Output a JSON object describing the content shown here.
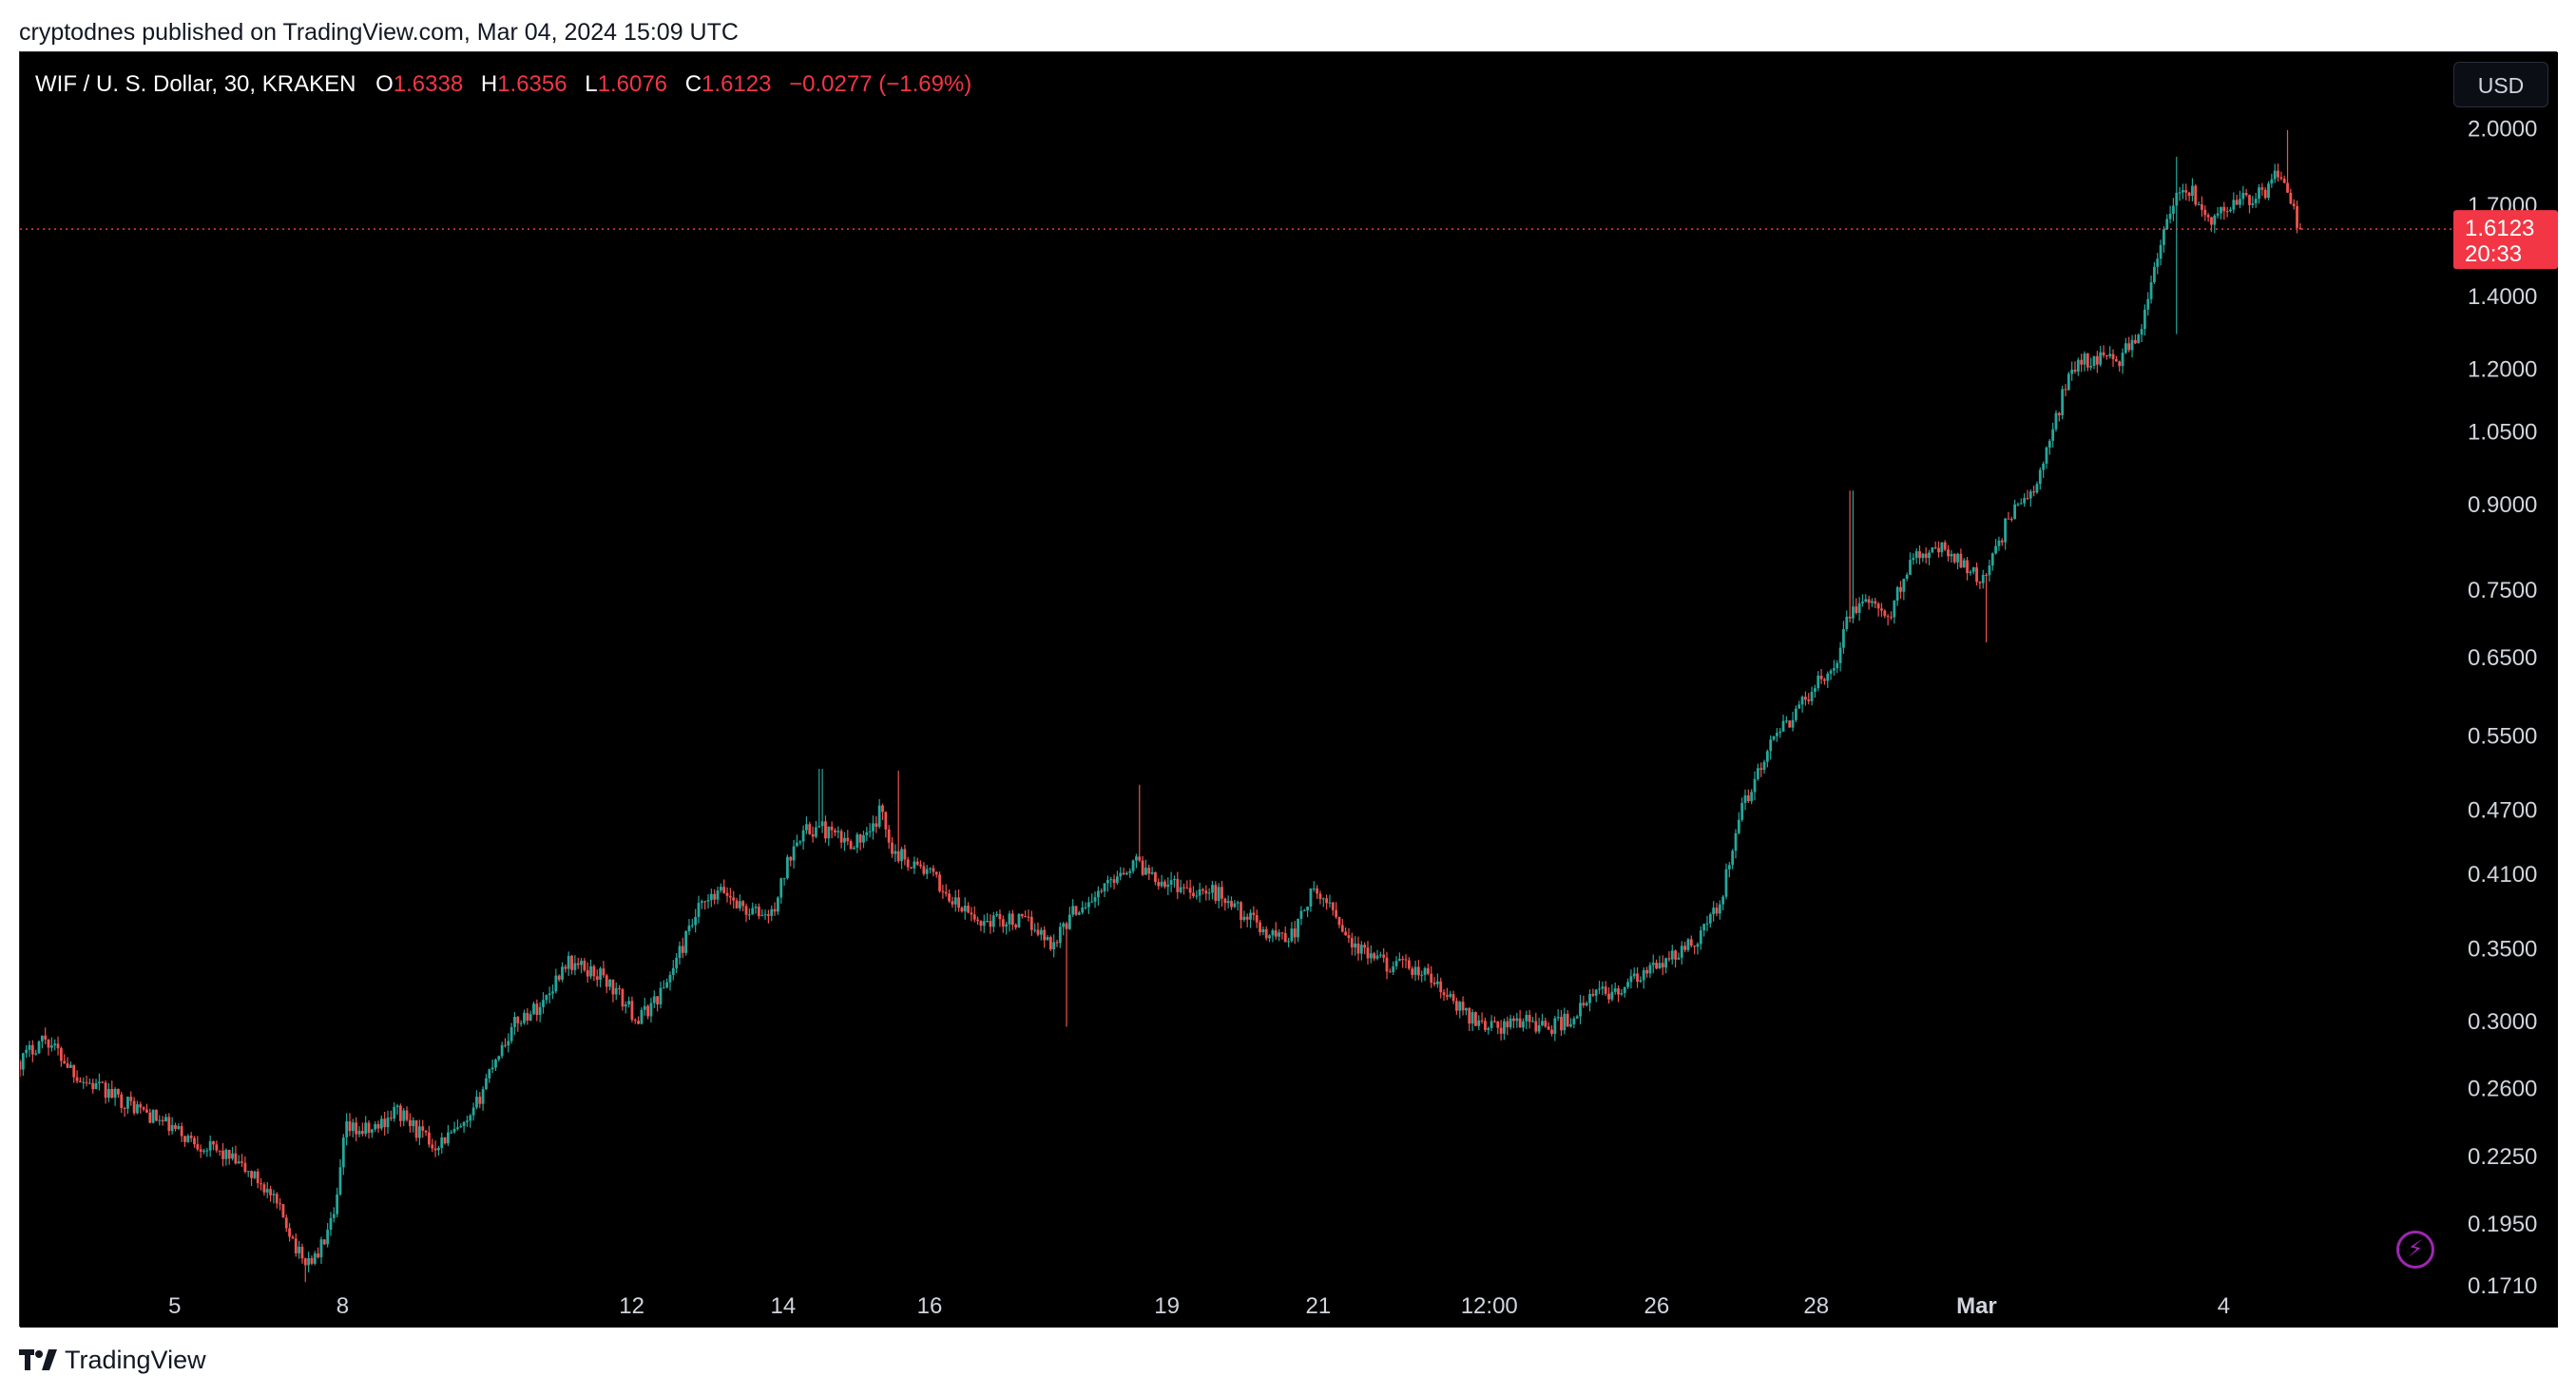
{
  "header": {
    "publisher_text": "cryptodnes published on TradingView.com, Mar 04, 2024 15:09 UTC"
  },
  "legend": {
    "symbol": "WIF / U. S. Dollar, 30, KRAKEN",
    "o_label": "O",
    "o_value": "1.6338",
    "h_label": "H",
    "h_value": "1.6356",
    "l_label": "L",
    "l_value": "1.6076",
    "c_label": "C",
    "c_value": "1.6123",
    "change": "−0.0277 (−1.69%)"
  },
  "toolbar": {
    "currency_button": "USD"
  },
  "price_badge": {
    "price": "1.6123",
    "countdown": "20:33"
  },
  "footer": {
    "brand": "TradingView"
  },
  "colors": {
    "background": "#000000",
    "up": "#26a69a",
    "down": "#ef5350",
    "axis_text": "#d1d4dc",
    "price_line": "#f23645",
    "badge": "#f23645"
  },
  "chart_data": {
    "type": "candlestick",
    "title": "WIF / U. S. Dollar, 30, KRAKEN",
    "y_scale": "log",
    "ylim": [
      0.17,
      2.08
    ],
    "last_price": 1.6123,
    "y_ticks": [
      {
        "value": 2.0,
        "label": "2.0000"
      },
      {
        "value": 1.7,
        "label": "1.7000"
      },
      {
        "value": 1.4,
        "label": "1.4000"
      },
      {
        "value": 1.2,
        "label": "1.2000"
      },
      {
        "value": 1.05,
        "label": "1.0500"
      },
      {
        "value": 0.9,
        "label": "0.9000"
      },
      {
        "value": 0.75,
        "label": "0.7500"
      },
      {
        "value": 0.65,
        "label": "0.6500"
      },
      {
        "value": 0.55,
        "label": "0.5500"
      },
      {
        "value": 0.47,
        "label": "0.4700"
      },
      {
        "value": 0.41,
        "label": "0.4100"
      },
      {
        "value": 0.35,
        "label": "0.3500"
      },
      {
        "value": 0.3,
        "label": "0.3000"
      },
      {
        "value": 0.26,
        "label": "0.2600"
      },
      {
        "value": 0.225,
        "label": "0.2250"
      },
      {
        "value": 0.195,
        "label": "0.1950"
      },
      {
        "value": 0.171,
        "label": "0.1710"
      }
    ],
    "x_ticks": [
      {
        "frac": 0.0638,
        "label": "5",
        "bold": false
      },
      {
        "frac": 0.133,
        "label": "8",
        "bold": false
      },
      {
        "frac": 0.2522,
        "label": "12",
        "bold": false
      },
      {
        "frac": 0.3146,
        "label": "14",
        "bold": false
      },
      {
        "frac": 0.375,
        "label": "16",
        "bold": false
      },
      {
        "frac": 0.4728,
        "label": "19",
        "bold": false
      },
      {
        "frac": 0.5352,
        "label": "21",
        "bold": false
      },
      {
        "frac": 0.6057,
        "label": "12:00",
        "bold": false
      },
      {
        "frac": 0.6747,
        "label": "26",
        "bold": false
      },
      {
        "frac": 0.7405,
        "label": "28",
        "bold": false
      },
      {
        "frac": 0.8066,
        "label": "Mar",
        "bold": true
      },
      {
        "frac": 0.9085,
        "label": "4",
        "bold": false
      }
    ],
    "anchors": [
      [
        0.0,
        0.275
      ],
      [
        0.01,
        0.29
      ],
      [
        0.025,
        0.265
      ],
      [
        0.05,
        0.248
      ],
      [
        0.07,
        0.233
      ],
      [
        0.085,
        0.225
      ],
      [
        0.1,
        0.212
      ],
      [
        0.11,
        0.195
      ],
      [
        0.116,
        0.18
      ],
      [
        0.122,
        0.181
      ],
      [
        0.13,
        0.198
      ],
      [
        0.134,
        0.238
      ],
      [
        0.145,
        0.237
      ],
      [
        0.155,
        0.248
      ],
      [
        0.17,
        0.23
      ],
      [
        0.185,
        0.24
      ],
      [
        0.195,
        0.275
      ],
      [
        0.205,
        0.3
      ],
      [
        0.215,
        0.31
      ],
      [
        0.225,
        0.34
      ],
      [
        0.24,
        0.33
      ],
      [
        0.255,
        0.3
      ],
      [
        0.265,
        0.32
      ],
      [
        0.28,
        0.38
      ],
      [
        0.29,
        0.395
      ],
      [
        0.3,
        0.378
      ],
      [
        0.31,
        0.375
      ],
      [
        0.32,
        0.445
      ],
      [
        0.33,
        0.452
      ],
      [
        0.34,
        0.438
      ],
      [
        0.35,
        0.442
      ],
      [
        0.355,
        0.47
      ],
      [
        0.36,
        0.43
      ],
      [
        0.375,
        0.41
      ],
      [
        0.385,
        0.385
      ],
      [
        0.395,
        0.37
      ],
      [
        0.405,
        0.372
      ],
      [
        0.418,
        0.368
      ],
      [
        0.425,
        0.352
      ],
      [
        0.435,
        0.38
      ],
      [
        0.445,
        0.392
      ],
      [
        0.452,
        0.41
      ],
      [
        0.46,
        0.42
      ],
      [
        0.47,
        0.405
      ],
      [
        0.48,
        0.398
      ],
      [
        0.495,
        0.392
      ],
      [
        0.505,
        0.375
      ],
      [
        0.515,
        0.36
      ],
      [
        0.525,
        0.36
      ],
      [
        0.532,
        0.392
      ],
      [
        0.54,
        0.385
      ],
      [
        0.55,
        0.35
      ],
      [
        0.56,
        0.34
      ],
      [
        0.57,
        0.336
      ],
      [
        0.58,
        0.33
      ],
      [
        0.59,
        0.312
      ],
      [
        0.6,
        0.3
      ],
      [
        0.61,
        0.295
      ],
      [
        0.62,
        0.301
      ],
      [
        0.63,
        0.295
      ],
      [
        0.64,
        0.302
      ],
      [
        0.65,
        0.318
      ],
      [
        0.66,
        0.32
      ],
      [
        0.67,
        0.331
      ],
      [
        0.68,
        0.341
      ],
      [
        0.69,
        0.355
      ],
      [
        0.7,
        0.38
      ],
      [
        0.71,
        0.47
      ],
      [
        0.72,
        0.53
      ],
      [
        0.73,
        0.57
      ],
      [
        0.74,
        0.61
      ],
      [
        0.748,
        0.64
      ],
      [
        0.755,
        0.72
      ],
      [
        0.762,
        0.73
      ],
      [
        0.77,
        0.7
      ],
      [
        0.78,
        0.81
      ],
      [
        0.79,
        0.82
      ],
      [
        0.8,
        0.8
      ],
      [
        0.81,
        0.76
      ],
      [
        0.82,
        0.88
      ],
      [
        0.83,
        0.92
      ],
      [
        0.838,
        1.05
      ],
      [
        0.845,
        1.2
      ],
      [
        0.855,
        1.23
      ],
      [
        0.865,
        1.22
      ],
      [
        0.875,
        1.31
      ],
      [
        0.88,
        1.48
      ],
      [
        0.887,
        1.7
      ],
      [
        0.895,
        1.75
      ],
      [
        0.902,
        1.64
      ],
      [
        0.91,
        1.7
      ],
      [
        0.92,
        1.72
      ],
      [
        0.926,
        1.75
      ],
      [
        0.93,
        1.85
      ],
      [
        0.935,
        1.72
      ],
      [
        0.94,
        1.6123
      ]
    ],
    "spikes": [
      {
        "frac": 0.33,
        "high": 0.512
      },
      {
        "frac": 0.362,
        "high": 0.51
      },
      {
        "frac": 0.461,
        "high": 0.495
      },
      {
        "frac": 0.431,
        "low": 0.296
      },
      {
        "frac": 0.755,
        "high": 0.925
      },
      {
        "frac": 0.811,
        "low": 0.67
      },
      {
        "frac": 0.889,
        "high": 1.88
      },
      {
        "frac": 0.8895,
        "low": 1.29
      },
      {
        "frac": 0.935,
        "high": 1.99
      },
      {
        "frac": 0.118,
        "low": 0.172
      }
    ]
  }
}
